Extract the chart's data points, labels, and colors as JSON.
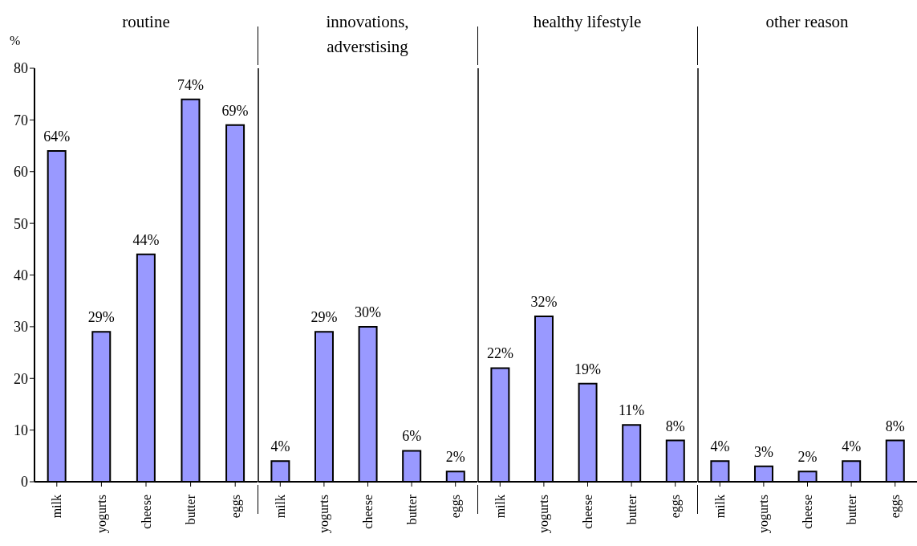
{
  "chart_data": [
    {
      "type": "bar",
      "title": "routine",
      "ylabel": "%",
      "categories": [
        "milk",
        "yogurts",
        "cheese",
        "butter",
        "eggs"
      ],
      "values": [
        64,
        29,
        44,
        74,
        69
      ],
      "value_labels": [
        "64%",
        "29%",
        "44%",
        "74%",
        "69%"
      ],
      "color": "#9999ff",
      "ylim": [
        0,
        80
      ],
      "yticks": [
        0,
        10,
        20,
        30,
        40,
        50,
        60,
        70,
        80
      ]
    },
    {
      "type": "bar",
      "title": "innovations, adverstising",
      "categories": [
        "milk",
        "yogurts",
        "cheese",
        "butter",
        "eggs"
      ],
      "values": [
        4,
        29,
        30,
        6,
        2
      ],
      "value_labels": [
        "4%",
        "29%",
        "30%",
        "6%",
        "2%"
      ],
      "color": "#9999ff",
      "ylim": [
        0,
        80
      ],
      "yticks": [
        0,
        10,
        20,
        30,
        40,
        50,
        60,
        70,
        80
      ],
      "tick_labels": "x"
    },
    {
      "type": "bar",
      "title": "healthy lifestyle",
      "categories": [
        "milk",
        "yogurts",
        "cheese",
        "butter",
        "eggs"
      ],
      "values": [
        22,
        32,
        19,
        11,
        8
      ],
      "value_labels": [
        "22%",
        "32%",
        "19%",
        "11%",
        "8%"
      ],
      "color": "#9999ff",
      "ylim": [
        0,
        80
      ],
      "yticks": [
        0,
        10,
        20,
        30,
        40,
        50,
        60,
        70,
        80
      ],
      "tick_labels": "x"
    },
    {
      "type": "bar",
      "title": "other reason",
      "categories": [
        "milk",
        "yogurts",
        "cheese",
        "butter",
        "eggs"
      ],
      "values": [
        4,
        3,
        2,
        4,
        8
      ],
      "value_labels": [
        "4%",
        "3%",
        "2%",
        "4%",
        "8%"
      ],
      "color": "#9999ff",
      "ylim": [
        0,
        80
      ],
      "yticks": [
        0,
        10,
        20,
        30,
        40,
        50,
        60,
        70,
        80
      ],
      "tick_labels": "x"
    }
  ]
}
